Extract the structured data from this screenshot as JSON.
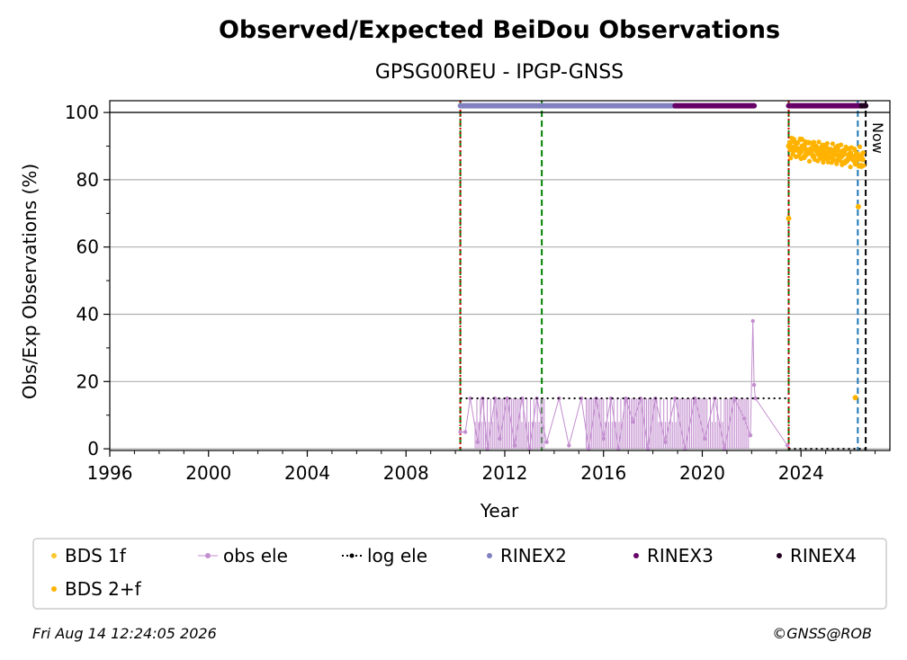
{
  "chart_data": {
    "type": "scatter",
    "title": "Observed/Expected BeiDou Observations",
    "subtitle": "GPSG00REU - IPGP-GNSS",
    "xlabel": "Year",
    "ylabel": "Obs/Exp Observations (%)",
    "xlim": [
      1996,
      2027.6
    ],
    "ylim": [
      -0.5,
      103.5
    ],
    "x_ticks": [
      1996,
      2000,
      2004,
      2008,
      2012,
      2016,
      2020,
      2024
    ],
    "x_tick_labels": [
      "1996",
      "2000",
      "2004",
      "2008",
      "2012",
      "2016",
      "2020",
      "2024"
    ],
    "y_ticks": [
      0,
      20,
      40,
      60,
      80,
      100
    ],
    "y_tick_labels": [
      "0",
      "20",
      "40",
      "60",
      "80",
      "100"
    ],
    "grid": "horizontal",
    "now_label": "Now",
    "now_year": 2026.62,
    "legend": {
      "placement": "bottom",
      "entries": [
        {
          "label": "BDS 1f",
          "color": "#fcc832",
          "marker": "dot"
        },
        {
          "label": "obs ele",
          "color": "#c38ecf",
          "marker": "line-dot"
        },
        {
          "label": "log ele",
          "color": "#000000",
          "marker": "dotted-line"
        },
        {
          "label": "RINEX2",
          "color": "#8080c0",
          "marker": "dot"
        },
        {
          "label": "RINEX3",
          "color": "#660066",
          "marker": "dot"
        },
        {
          "label": "RINEX4",
          "color": "#220022",
          "marker": "dot"
        },
        {
          "label": "BDS 2+f",
          "color": "#ffb300",
          "marker": "dot"
        }
      ]
    },
    "series": [
      {
        "name": "BDS 2+f",
        "color": "#ffb300",
        "x": [
          2023.5,
          2023.55,
          2023.62,
          2023.7,
          2023.78,
          2023.86,
          2023.95,
          2024.03,
          2024.12,
          2024.2,
          2024.3,
          2024.4,
          2024.5,
          2024.6,
          2024.7,
          2024.8,
          2024.9,
          2025.0,
          2025.1,
          2025.2,
          2025.3,
          2025.4,
          2025.5,
          2025.6,
          2025.7,
          2025.8,
          2025.9,
          2026.0,
          2026.1,
          2026.2,
          2026.3,
          2026.4,
          2026.45,
          2026.5,
          2023.5,
          2026.2,
          2026.32
        ],
        "y": [
          90,
          91,
          89,
          92,
          90,
          91,
          88,
          92,
          90,
          89,
          91,
          88,
          87,
          90,
          89,
          88,
          86,
          90,
          87,
          89,
          86,
          88,
          90,
          87,
          85,
          89,
          86,
          88,
          87,
          85,
          86,
          87,
          84,
          86,
          68.5,
          15.2,
          72
        ]
      },
      {
        "name": "obs ele",
        "color": "#c38ecf",
        "x": [
          2010.2,
          2010.4,
          2010.6,
          2010.9,
          2011.1,
          2011.3,
          2011.6,
          2011.8,
          2012.1,
          2012.4,
          2012.7,
          2013.0,
          2013.3,
          2013.7,
          2014.2,
          2014.6,
          2015.1,
          2015.4,
          2015.7,
          2016.0,
          2016.3,
          2016.6,
          2016.9,
          2017.2,
          2017.5,
          2017.8,
          2018.1,
          2018.5,
          2018.9,
          2019.3,
          2019.7,
          2020.1,
          2020.5,
          2020.9,
          2021.3,
          2021.7,
          2021.95,
          2022.05,
          2022.1,
          2022.15,
          2023.45
        ],
        "y": [
          5,
          5,
          15,
          2,
          15,
          0,
          15,
          3,
          15,
          1,
          15,
          0,
          15,
          2,
          15,
          1,
          15,
          0,
          15,
          3,
          15,
          0,
          15,
          8,
          15,
          0,
          15,
          2,
          15,
          0,
          15,
          3,
          15,
          0,
          15,
          9,
          4,
          38,
          19,
          15,
          1
        ]
      },
      {
        "name": "log ele",
        "color": "#000000",
        "segments": [
          {
            "x0": 2010.2,
            "x1": 2023.5,
            "y": 15
          },
          {
            "x0": 2023.5,
            "x1": 2026.62,
            "y": 0
          }
        ]
      },
      {
        "name": "RINEX2",
        "color": "#8080c0",
        "segments": [
          {
            "x0": 2010.2,
            "x1": 2018.9,
            "y": 102
          }
        ]
      },
      {
        "name": "RINEX3",
        "color": "#660066",
        "segments": [
          {
            "x0": 2018.9,
            "x1": 2022.1,
            "y": 102
          },
          {
            "x0": 2023.5,
            "x1": 2026.45,
            "y": 102
          }
        ]
      },
      {
        "name": "RINEX4",
        "color": "#220022",
        "segments": [
          {
            "x0": 2026.45,
            "x1": 2026.62,
            "y": 102
          }
        ]
      }
    ],
    "vertical_lines": [
      {
        "x": 2010.2,
        "color": "#008000",
        "style": "dashed"
      },
      {
        "x": 2010.2,
        "color": "#cc0000",
        "style": "dotted"
      },
      {
        "x": 2013.5,
        "color": "#008000",
        "style": "dashed"
      },
      {
        "x": 2023.5,
        "color": "#008000",
        "style": "dashed"
      },
      {
        "x": 2023.5,
        "color": "#cc0000",
        "style": "dotted"
      },
      {
        "x": 2026.3,
        "color": "#1f77b4",
        "style": "dashed"
      },
      {
        "x": 2026.62,
        "color": "#000000",
        "style": "dashed"
      }
    ]
  },
  "footer": {
    "timestamp": "Fri Aug 14 12:24:05 2026",
    "copyright": "©GNSS@ROB"
  }
}
